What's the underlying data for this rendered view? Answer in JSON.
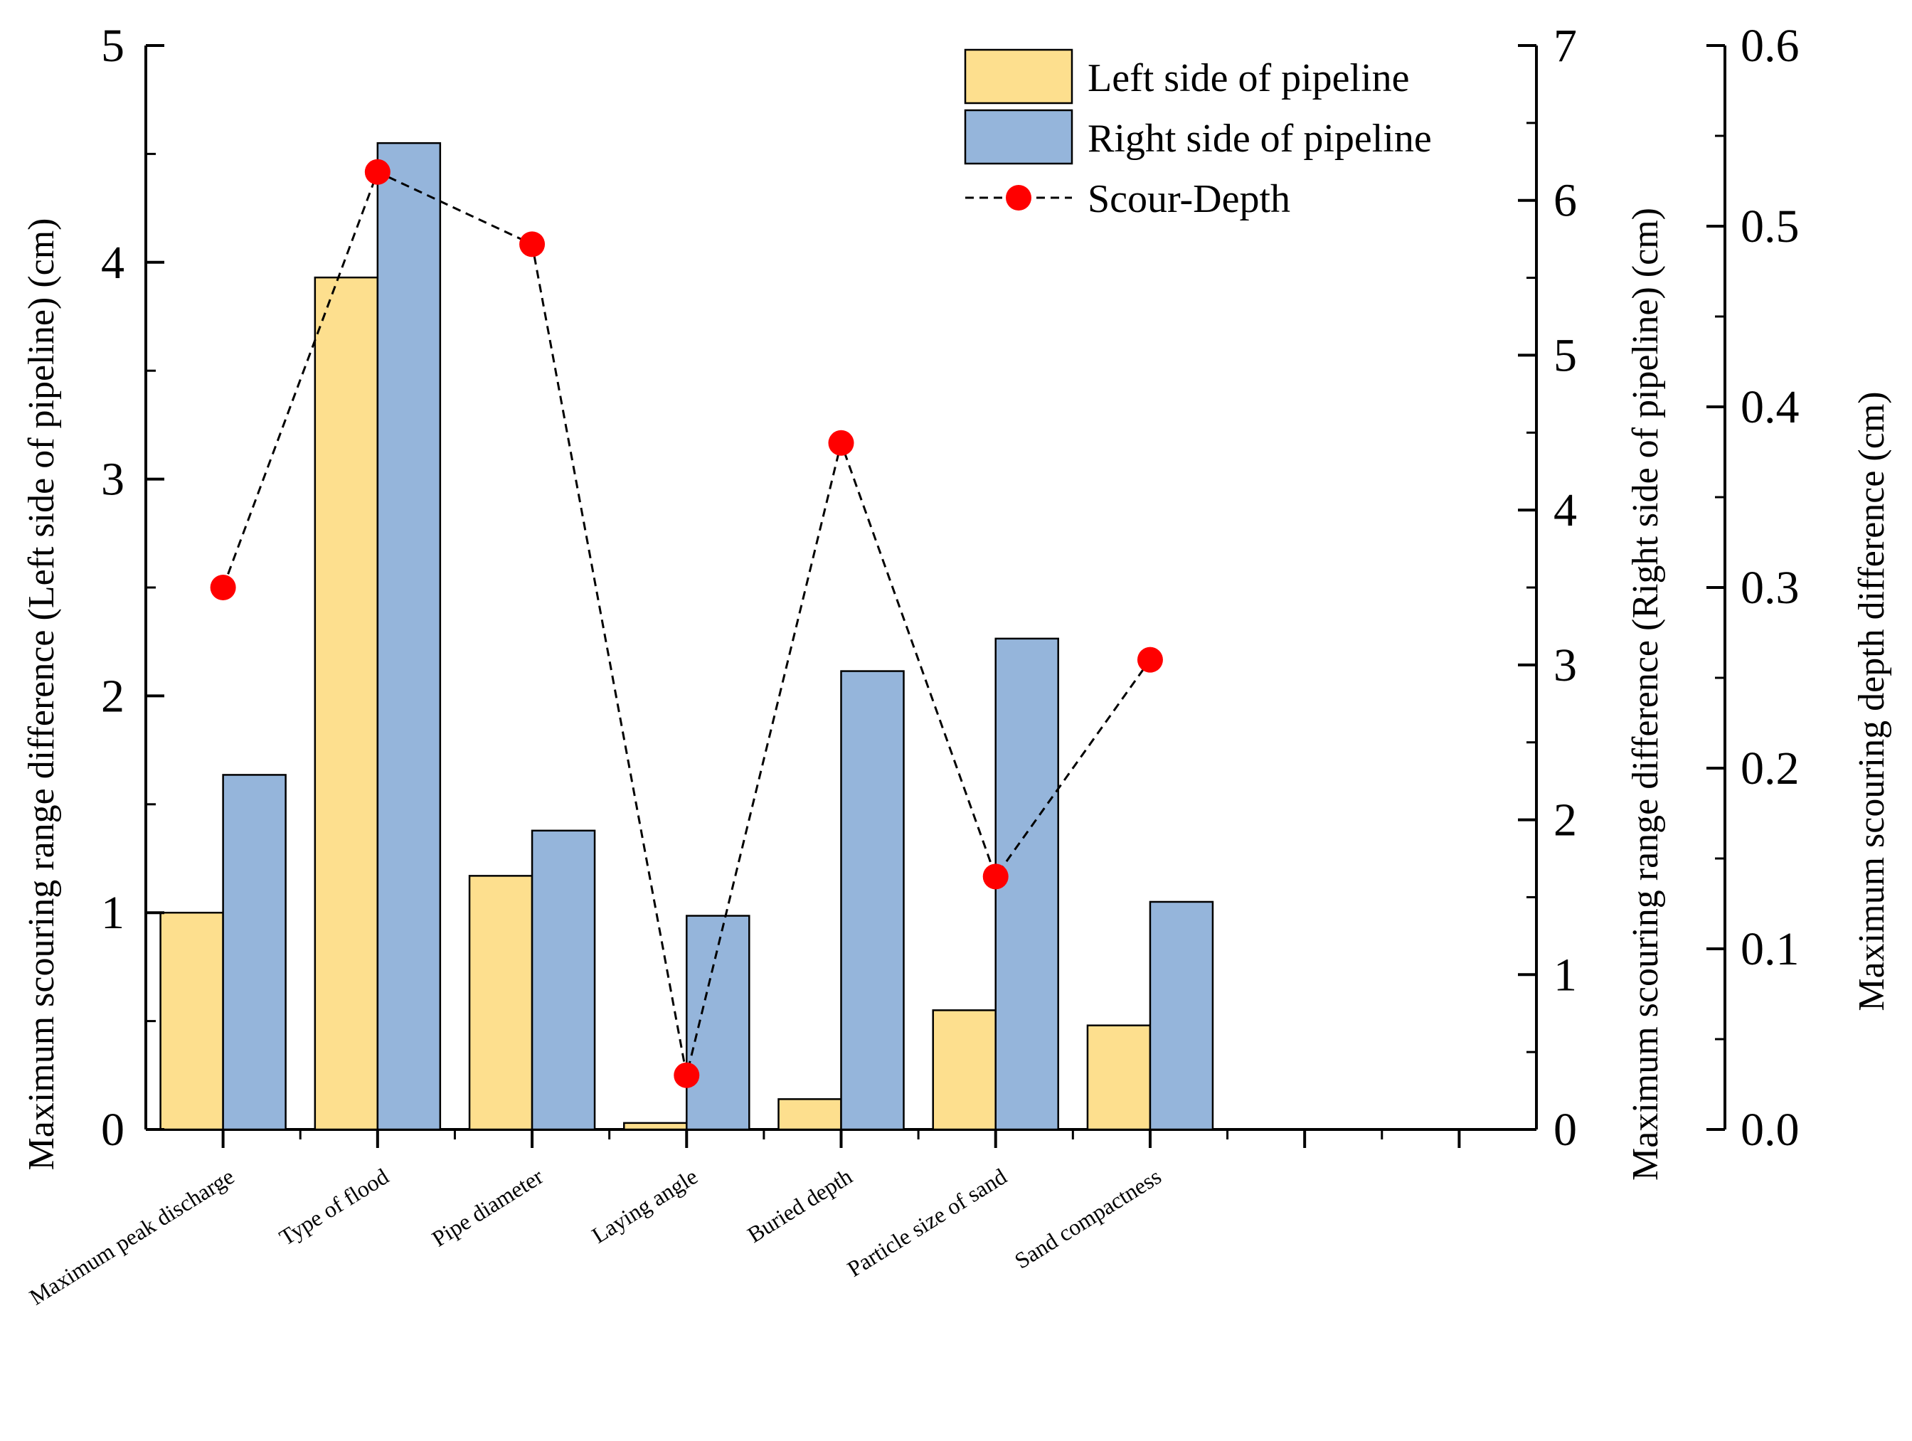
{
  "chart_data": {
    "type": "bar",
    "categories": [
      "Maximum peak discharge",
      "Type of flood",
      "Pipe diameter",
      "Laying angle",
      "Buried depth",
      "Particle size of sand",
      "Sand compactness"
    ],
    "series": [
      {
        "name": "Left side of pipeline",
        "type": "bar",
        "axis": "left",
        "color": "#FDDF8E",
        "values": [
          1.0,
          3.93,
          1.17,
          0.03,
          0.14,
          0.55,
          0.48
        ]
      },
      {
        "name": "Right side of pipeline",
        "type": "bar",
        "axis": "right",
        "color": "#95B5DB",
        "values": [
          2.29,
          6.37,
          1.93,
          1.38,
          2.96,
          3.17,
          1.47
        ]
      },
      {
        "name": "Scour-Depth",
        "type": "line",
        "axis": "right2",
        "color": "#FF0000",
        "line_style": "dashed",
        "values": [
          0.3,
          0.53,
          0.49,
          0.03,
          0.38,
          0.14,
          0.26
        ]
      }
    ],
    "axes": {
      "left": {
        "label": "Maximum scouring range difference (Left side of pipeline) (cm)",
        "ylim": [
          0,
          5
        ],
        "ticks": [
          "0",
          "1",
          "2",
          "3",
          "4",
          "5"
        ]
      },
      "right": {
        "label": "Maximum scouring range difference (Right side of pipeline) (cm)",
        "ylim": [
          0,
          7
        ],
        "ticks": [
          "0",
          "1",
          "2",
          "3",
          "4",
          "5",
          "6",
          "7"
        ]
      },
      "right2": {
        "label": "Maximum scouring depth difference (cm)",
        "ylim": [
          0,
          0.6
        ],
        "ticks": [
          "0.0",
          "0.1",
          "0.2",
          "0.3",
          "0.4",
          "0.5",
          "0.6"
        ]
      }
    },
    "x_slots": 9,
    "legend": {
      "position": "top-right",
      "entries": [
        "Left side of pipeline",
        "Right side of pipeline",
        "Scour-Depth"
      ]
    },
    "grid": false
  }
}
